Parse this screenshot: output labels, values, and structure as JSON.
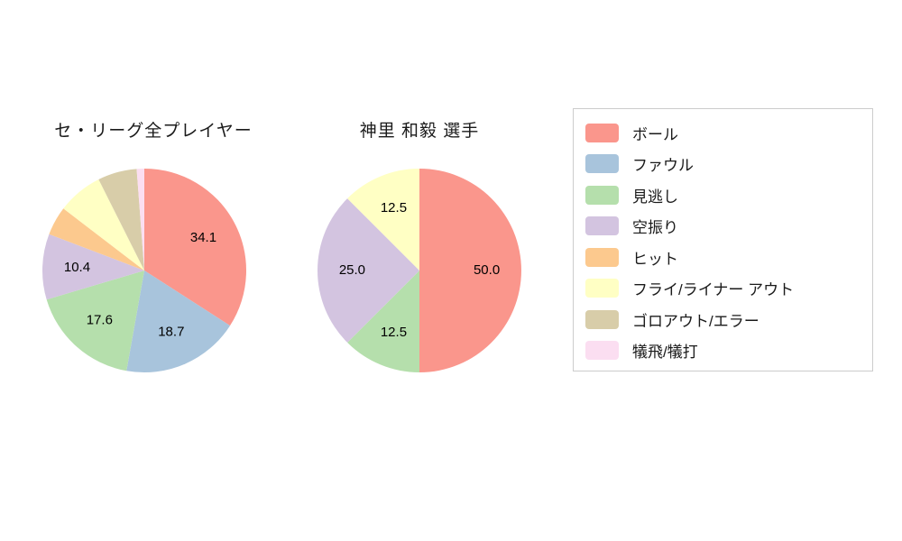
{
  "page": {
    "background": "#ffffff"
  },
  "chart_data": [
    {
      "type": "pie",
      "title": "セ・リーグ全プレイヤー",
      "start_angle_deg": 0,
      "direction": "clockwise",
      "label_position_radius_ratio": 0.66,
      "slices": [
        {
          "name": "ボール",
          "value": 34.1,
          "label": "34.1",
          "color": "#fa968c"
        },
        {
          "name": "ファウル",
          "value": 18.7,
          "label": "18.7",
          "color": "#a8c4dc"
        },
        {
          "name": "見逃し",
          "value": 17.6,
          "label": "17.6",
          "color": "#b5dfac"
        },
        {
          "name": "空振り",
          "value": 10.4,
          "label": "10.4",
          "color": "#d3c4e0"
        },
        {
          "name": "ヒット",
          "value": 4.6,
          "label": null,
          "color": "#fcc98e"
        },
        {
          "name": "フライ/ライナー アウト",
          "value": 7.2,
          "label": null,
          "color": "#ffffc4"
        },
        {
          "name": "ゴロアウト/エラー",
          "value": 6.2,
          "label": null,
          "color": "#d8cda9"
        },
        {
          "name": "犠飛/犠打",
          "value": 1.2,
          "label": null,
          "color": "#fbdef1"
        }
      ]
    },
    {
      "type": "pie",
      "title": "神里 和毅  選手",
      "start_angle_deg": 0,
      "direction": "clockwise",
      "label_position_radius_ratio": 0.66,
      "slices": [
        {
          "name": "ボール",
          "value": 50.0,
          "label": "50.0",
          "color": "#fa968c"
        },
        {
          "name": "見逃し",
          "value": 12.5,
          "label": "12.5",
          "color": "#b5dfac"
        },
        {
          "name": "空振り",
          "value": 25.0,
          "label": "25.0",
          "color": "#d3c4e0"
        },
        {
          "name": "フライ/ライナー アウト",
          "value": 12.5,
          "label": "12.5",
          "color": "#ffffc4"
        }
      ]
    }
  ],
  "legend": {
    "border_color": "#cccccc",
    "items": [
      {
        "label": "ボール",
        "color": "#fa968c"
      },
      {
        "label": "ファウル",
        "color": "#a8c4dc"
      },
      {
        "label": "見逃し",
        "color": "#b5dfac"
      },
      {
        "label": "空振り",
        "color": "#d3c4e0"
      },
      {
        "label": "ヒット",
        "color": "#fcc98e"
      },
      {
        "label": "フライ/ライナー アウト",
        "color": "#ffffc4"
      },
      {
        "label": "ゴロアウト/エラー",
        "color": "#d8cda9"
      },
      {
        "label": "犠飛/犠打",
        "color": "#fbdef1"
      }
    ]
  }
}
